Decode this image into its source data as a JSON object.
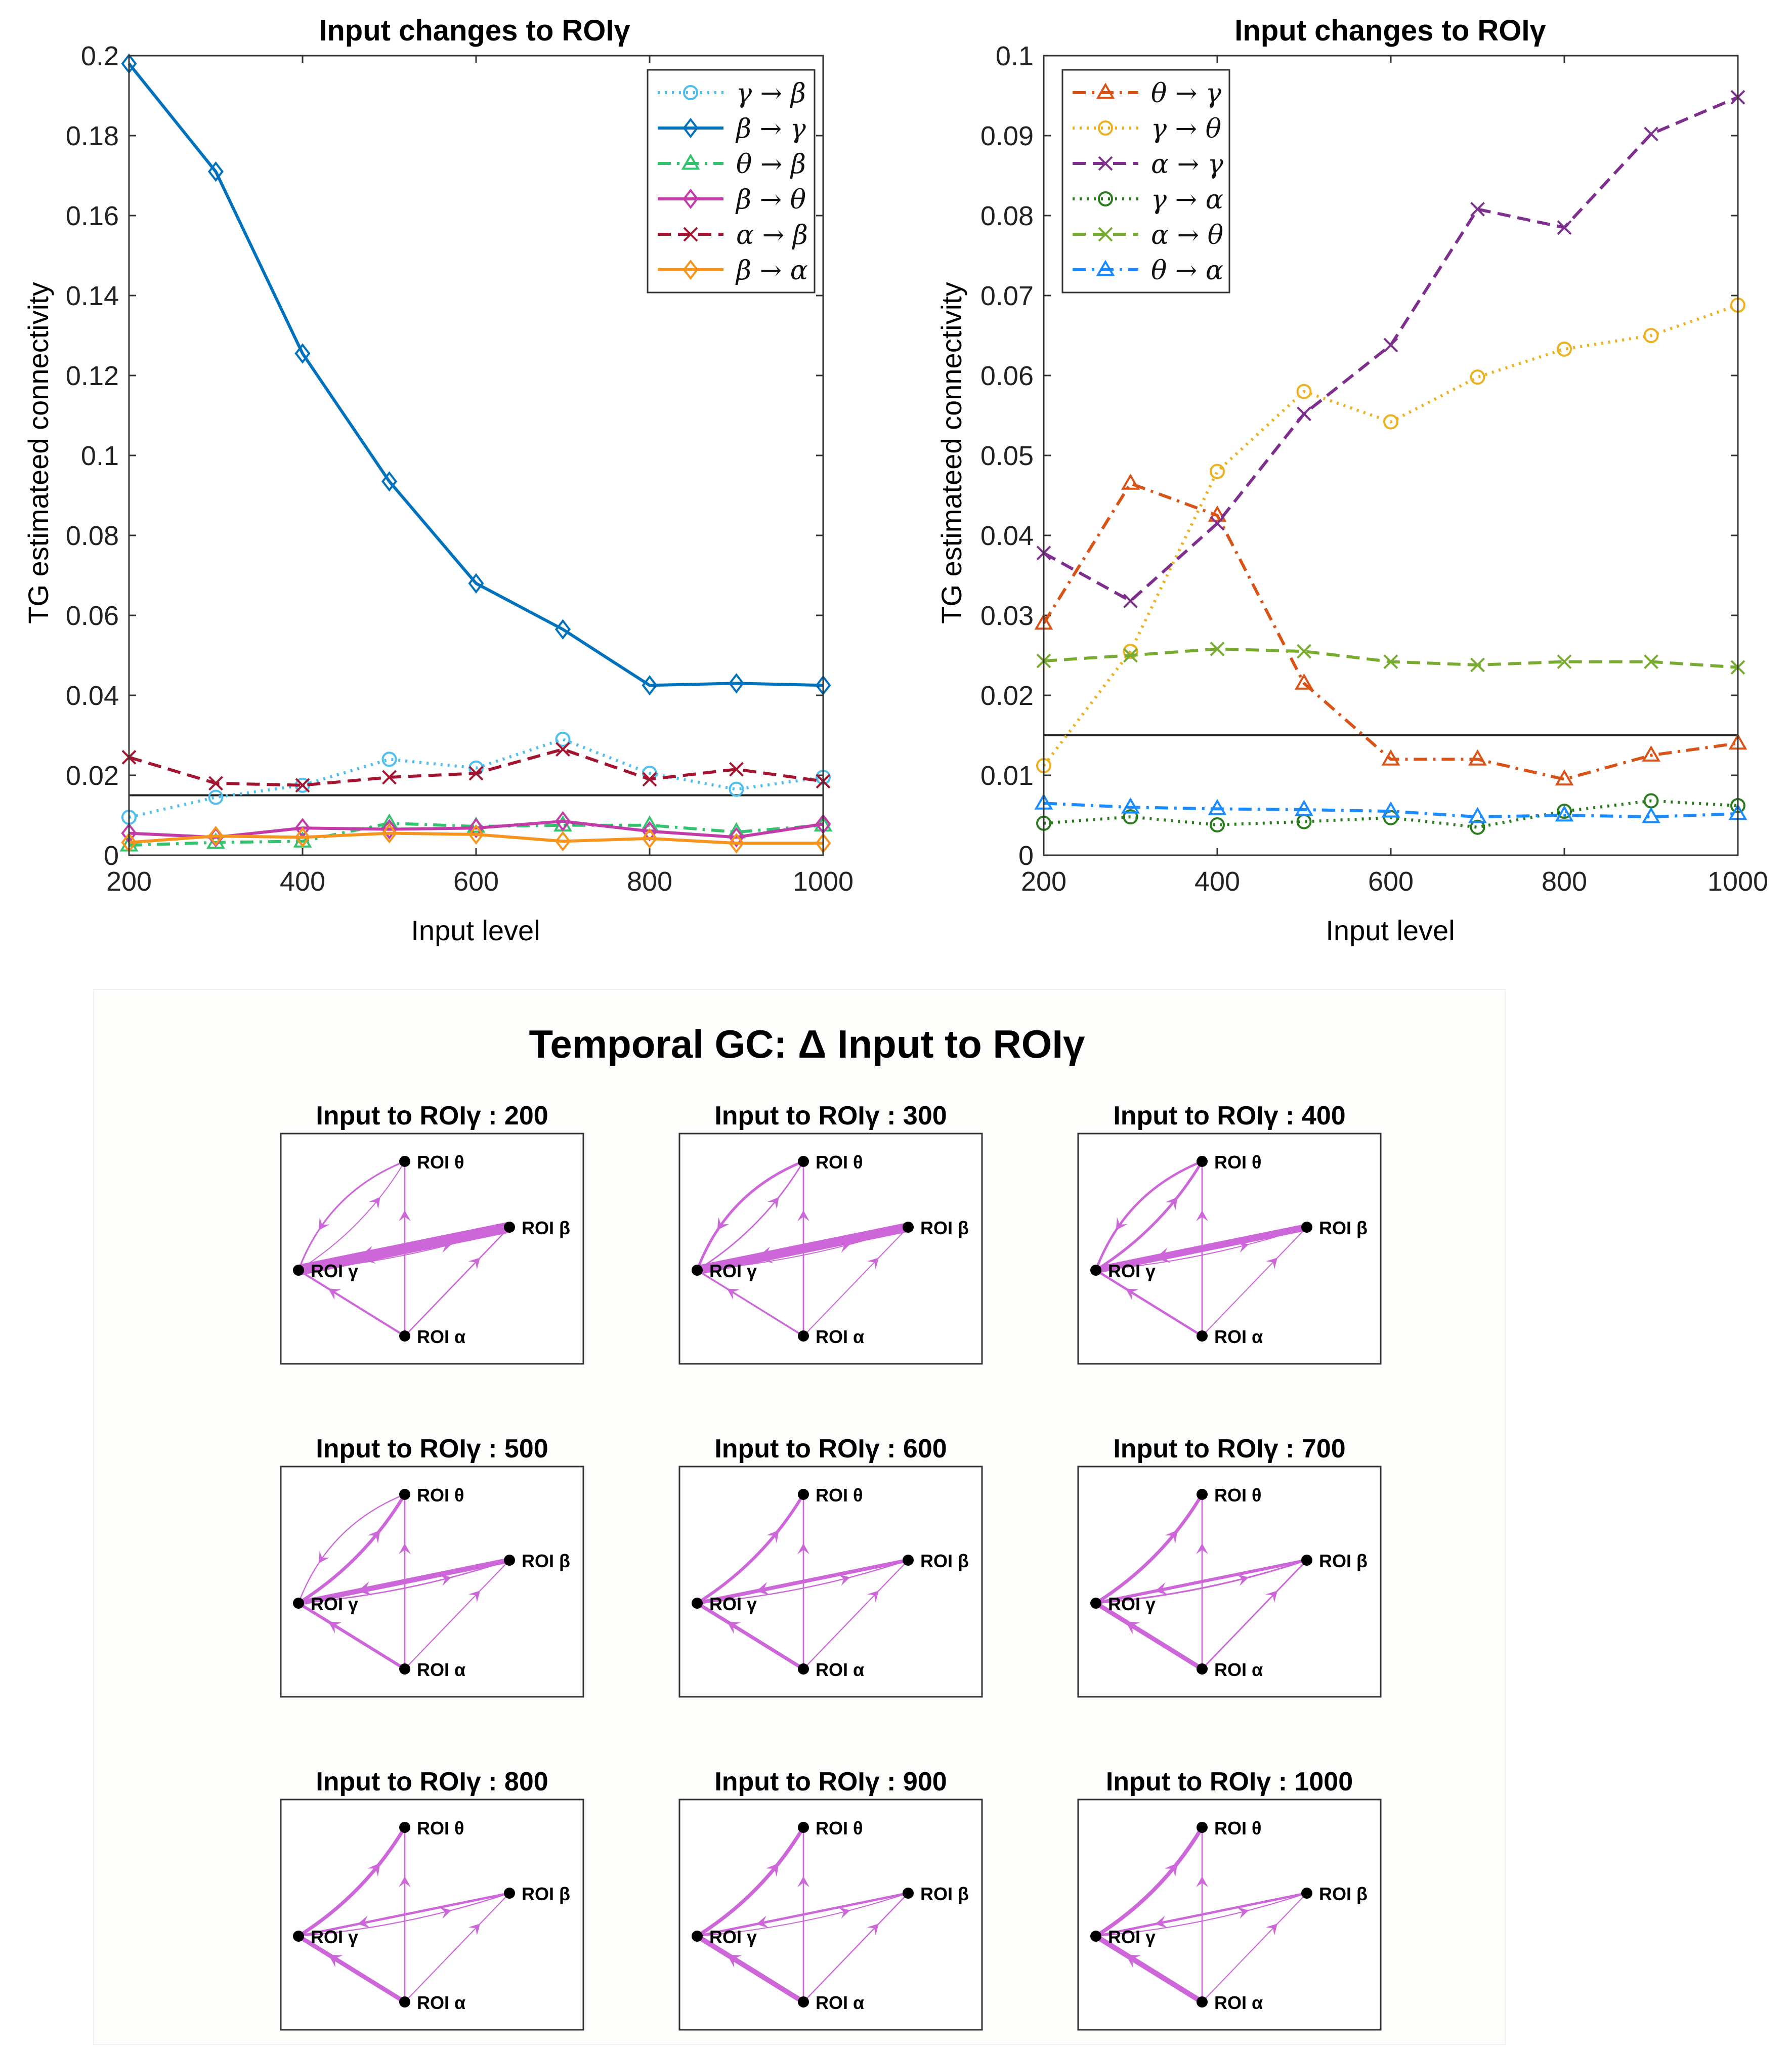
{
  "chart_data": [
    {
      "type": "line",
      "title": "Input changes to ROIγ",
      "xlabel": "Input level",
      "ylabel": "TG estimateed connectivity",
      "xlim": [
        200,
        1000
      ],
      "ylim": [
        0,
        0.2
      ],
      "xticks": [
        200,
        400,
        600,
        800,
        1000
      ],
      "yticks": [
        0,
        0.02,
        0.04,
        0.06,
        0.08,
        0.1,
        0.12,
        0.14,
        0.16,
        0.18,
        0.2
      ],
      "ytick_labels": [
        "0",
        "0.02",
        "0.04",
        "0.06",
        "0.08",
        "0.1",
        "0.12",
        "0.14",
        "0.16",
        "0.18",
        "0.2"
      ],
      "xtick_labels": [
        "200",
        "400",
        "600",
        "800",
        "1000"
      ],
      "threshold": 0.015,
      "x": [
        200,
        300,
        400,
        500,
        600,
        700,
        800,
        900,
        1000
      ],
      "legend_position": "top-right",
      "series": [
        {
          "name": "γ → β",
          "color": "#4dbeee",
          "dash": "dot",
          "marker": "circle",
          "values": [
            0.0095,
            0.0145,
            0.0175,
            0.024,
            0.0218,
            0.029,
            0.0205,
            0.0165,
            0.0195
          ]
        },
        {
          "name": "β → γ",
          "color": "#0072bd",
          "dash": "solid",
          "marker": "diamond",
          "values": [
            0.198,
            0.171,
            0.1255,
            0.0935,
            0.068,
            0.0565,
            0.0425,
            0.043,
            0.0425
          ]
        },
        {
          "name": "θ → β",
          "color": "#33c26e",
          "dash": "dashdot",
          "marker": "triangle",
          "values": [
            0.0025,
            0.0032,
            0.0035,
            0.008,
            0.0072,
            0.0075,
            0.0075,
            0.0058,
            0.0075
          ]
        },
        {
          "name": "β → θ",
          "color": "#c23ba8",
          "dash": "solid",
          "marker": "diamond",
          "values": [
            0.0055,
            0.0045,
            0.0068,
            0.0065,
            0.0068,
            0.0085,
            0.006,
            0.0045,
            0.0078
          ]
        },
        {
          "name": "α → β",
          "color": "#a2142f",
          "dash": "dash",
          "marker": "x",
          "values": [
            0.0245,
            0.018,
            0.0175,
            0.0195,
            0.0205,
            0.0265,
            0.019,
            0.0215,
            0.0185
          ]
        },
        {
          "name": "β → α",
          "color": "#f7941d",
          "dash": "solid",
          "marker": "diamond",
          "values": [
            0.0032,
            0.0048,
            0.0045,
            0.0055,
            0.0052,
            0.0035,
            0.0042,
            0.003,
            0.003
          ]
        }
      ]
    },
    {
      "type": "line",
      "title": "Input changes to ROIγ",
      "xlabel": "Input level",
      "ylabel": "TG estimateed connectivity",
      "xlim": [
        200,
        1000
      ],
      "ylim": [
        0,
        0.1
      ],
      "xticks": [
        200,
        400,
        600,
        800,
        1000
      ],
      "yticks": [
        0,
        0.01,
        0.02,
        0.03,
        0.04,
        0.05,
        0.06,
        0.07,
        0.08,
        0.09,
        0.1
      ],
      "ytick_labels": [
        "0",
        "0.01",
        "0.02",
        "0.03",
        "0.04",
        "0.05",
        "0.06",
        "0.07",
        "0.08",
        "0.09",
        "0.1"
      ],
      "xtick_labels": [
        "200",
        "400",
        "600",
        "800",
        "1000"
      ],
      "threshold": 0.015,
      "x": [
        200,
        300,
        400,
        500,
        600,
        700,
        800,
        900,
        1000
      ],
      "legend_position": "top-left",
      "series": [
        {
          "name": "θ → γ",
          "color": "#d95319",
          "dash": "dashdot",
          "marker": "triangle",
          "values": [
            0.029,
            0.0465,
            0.0425,
            0.0215,
            0.012,
            0.012,
            0.0095,
            0.0125,
            0.014
          ]
        },
        {
          "name": "γ → θ",
          "color": "#edb120",
          "dash": "dot",
          "marker": "circle",
          "values": [
            0.0112,
            0.0255,
            0.048,
            0.058,
            0.0542,
            0.0598,
            0.0633,
            0.065,
            0.0688
          ]
        },
        {
          "name": "α → γ",
          "color": "#7e2f8e",
          "dash": "dash",
          "marker": "x",
          "values": [
            0.0378,
            0.0318,
            0.0415,
            0.0552,
            0.0638,
            0.0808,
            0.0785,
            0.0902,
            0.0948
          ]
        },
        {
          "name": "γ → α",
          "color": "#2a7a1e",
          "dash": "dot",
          "marker": "circle",
          "values": [
            0.004,
            0.0048,
            0.0038,
            0.0042,
            0.0047,
            0.0035,
            0.0055,
            0.0068,
            0.0062
          ]
        },
        {
          "name": "α → θ",
          "color": "#77ac30",
          "dash": "dash",
          "marker": "x",
          "values": [
            0.0243,
            0.025,
            0.0258,
            0.0255,
            0.0242,
            0.0238,
            0.0242,
            0.0242,
            0.0235
          ]
        },
        {
          "name": "θ → α",
          "color": "#1a8cff",
          "dash": "dashdot",
          "marker": "triangle",
          "values": [
            0.0065,
            0.006,
            0.0058,
            0.0057,
            0.0055,
            0.0048,
            0.005,
            0.0048,
            0.0052
          ]
        }
      ]
    }
  ],
  "network": {
    "title": "Temporal GC: Δ Input to ROIγ",
    "node_labels": {
      "theta": "ROI θ",
      "beta": "ROI β",
      "gamma": "ROI γ",
      "alpha": "ROI α"
    },
    "edge_color": "#cc66d9",
    "panel_title_prefix": "Input to ROIγ : ",
    "panels": [
      {
        "level": "200",
        "edges": {
          "b_g": 0.198,
          "g_b": 0.0095,
          "a_b": 0.0245,
          "t_g": 0.029,
          "g_t": 0.0112,
          "a_g": 0.0378,
          "a_t": 0.0243
        }
      },
      {
        "level": "300",
        "edges": {
          "b_g": 0.171,
          "g_b": 0.0145,
          "a_b": 0.018,
          "t_g": 0.0465,
          "g_t": 0.0255,
          "a_g": 0.0318,
          "a_t": 0.025
        }
      },
      {
        "level": "400",
        "edges": {
          "b_g": 0.1255,
          "g_b": 0.0175,
          "a_b": 0.0175,
          "t_g": 0.0425,
          "g_t": 0.048,
          "a_g": 0.0415,
          "a_t": 0.0258
        }
      },
      {
        "level": "500",
        "edges": {
          "b_g": 0.0935,
          "g_b": 0.024,
          "a_b": 0.0195,
          "t_g": 0.0215,
          "g_t": 0.058,
          "a_g": 0.0552,
          "a_t": 0.0255
        }
      },
      {
        "level": "600",
        "edges": {
          "b_g": 0.068,
          "g_b": 0.0218,
          "a_b": 0.0205,
          "t_g": 0,
          "g_t": 0.0542,
          "a_g": 0.0638,
          "a_t": 0.0242
        }
      },
      {
        "level": "700",
        "edges": {
          "b_g": 0.0565,
          "g_b": 0.029,
          "a_b": 0.0265,
          "t_g": 0,
          "g_t": 0.0598,
          "a_g": 0.0808,
          "a_t": 0.0238
        }
      },
      {
        "level": "800",
        "edges": {
          "b_g": 0.0425,
          "g_b": 0.0205,
          "a_b": 0.019,
          "t_g": 0,
          "g_t": 0.0633,
          "a_g": 0.0785,
          "a_t": 0.0242
        }
      },
      {
        "level": "900",
        "edges": {
          "b_g": 0.043,
          "g_b": 0.0165,
          "a_b": 0.0215,
          "t_g": 0,
          "g_t": 0.065,
          "a_g": 0.0902,
          "a_t": 0.0242
        }
      },
      {
        "level": "1000",
        "edges": {
          "b_g": 0.0425,
          "g_b": 0.0195,
          "a_b": 0.0185,
          "t_g": 0,
          "g_t": 0.0688,
          "a_g": 0.0948,
          "a_t": 0.0235
        }
      }
    ]
  }
}
